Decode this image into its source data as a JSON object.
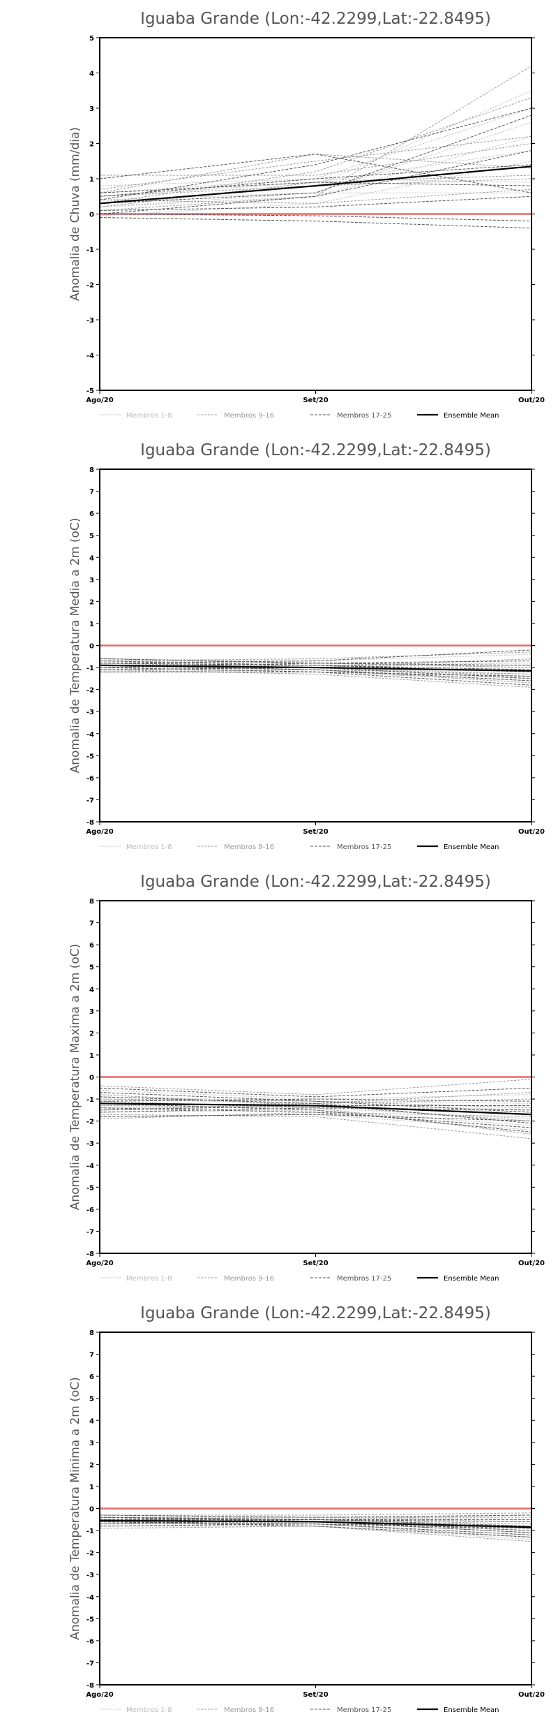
{
  "colors": {
    "members_1_8": "#bbbbbb",
    "members_9_16": "#999999",
    "members_17_25": "#555555",
    "ensemble": "#000000",
    "zero_line": "#e36a6a"
  },
  "x_labels": [
    "Ago/20",
    "Set/20",
    "Out/20"
  ],
  "legend": {
    "members_1_8": "Membros 1-8",
    "members_9_16": "Membros 9-16",
    "members_17_25": "Membros 17-25",
    "ensemble": "Ensemble Mean"
  },
  "chart_data": [
    {
      "type": "line",
      "title": "Iguaba Grande (Lon:-42.2299,Lat:-22.8495)",
      "ylabel": "Anomalia de Chuva (mm/dia)",
      "categories": [
        "Ago/20",
        "Set/20",
        "Out/20"
      ],
      "ylim": [
        -5,
        5
      ],
      "yticks": [
        -5,
        -4,
        -3,
        -2,
        -1,
        0,
        1,
        2,
        3,
        4,
        5
      ],
      "grid": false,
      "legend_position": "bottom",
      "series": [
        {
          "values": [
            0.5,
            0.9,
            1.8
          ],
          "group": "members_1_8"
        },
        {
          "values": [
            0.3,
            0.8,
            3.5
          ],
          "group": "members_1_8"
        },
        {
          "values": [
            0.2,
            0.5,
            2.2
          ],
          "group": "members_1_8"
        },
        {
          "values": [
            0.6,
            1.0,
            3.0
          ],
          "group": "members_1_8"
        },
        {
          "values": [
            0.4,
            0.6,
            0.6
          ],
          "group": "members_1_8"
        },
        {
          "values": [
            -0.05,
            0.3,
            1.5
          ],
          "group": "members_1_8"
        },
        {
          "values": [
            0.8,
            1.0,
            0.9
          ],
          "group": "members_1_8"
        },
        {
          "values": [
            0.2,
            0.6,
            2.6
          ],
          "group": "members_1_8"
        },
        {
          "values": [
            0.6,
            1.7,
            1.3
          ],
          "group": "members_9_16"
        },
        {
          "values": [
            1.1,
            1.1,
            2.0
          ],
          "group": "members_9_16"
        },
        {
          "values": [
            0.3,
            1.2,
            3.3
          ],
          "group": "members_9_16"
        },
        {
          "values": [
            0.5,
            0.8,
            1.0
          ],
          "group": "members_9_16"
        },
        {
          "values": [
            0.1,
            0.5,
            4.2
          ],
          "group": "members_9_16"
        },
        {
          "values": [
            0.7,
            1.5,
            2.2
          ],
          "group": "members_9_16"
        },
        {
          "values": [
            0.4,
            0.3,
            0.7
          ],
          "group": "members_9_16"
        },
        {
          "values": [
            0.2,
            0.9,
            1.1
          ],
          "group": "members_9_16"
        },
        {
          "values": [
            1.0,
            1.7,
            0.6
          ],
          "group": "members_17_25"
        },
        {
          "values": [
            -0.1,
            -0.2,
            -0.4
          ],
          "group": "members_17_25"
        },
        {
          "values": [
            0.3,
            0.6,
            2.8
          ],
          "group": "members_17_25"
        },
        {
          "values": [
            0.0,
            -0.05,
            -0.2
          ],
          "group": "members_17_25"
        },
        {
          "values": [
            0.5,
            1.0,
            1.4
          ],
          "group": "members_17_25"
        },
        {
          "values": [
            0.1,
            0.2,
            0.5
          ],
          "group": "members_17_25"
        },
        {
          "values": [
            0.4,
            1.4,
            3.0
          ],
          "group": "members_17_25"
        },
        {
          "values": [
            0.0,
            0.5,
            1.8
          ],
          "group": "members_17_25"
        },
        {
          "values": [
            0.6,
            0.9,
            0.8
          ],
          "group": "members_17_25"
        },
        {
          "values": [
            0.3,
            0.8,
            1.35
          ],
          "group": "ensemble"
        }
      ]
    },
    {
      "type": "line",
      "title": "Iguaba Grande (Lon:-42.2299,Lat:-22.8495)",
      "ylabel": "Anomalia de Temperatura Media a 2m (oC)",
      "categories": [
        "Ago/20",
        "Set/20",
        "Out/20"
      ],
      "ylim": [
        -8,
        8
      ],
      "yticks": [
        -8,
        -7,
        -6,
        -5,
        -4,
        -3,
        -2,
        -1,
        0,
        1,
        2,
        3,
        4,
        5,
        6,
        7,
        8
      ],
      "grid": false,
      "legend_position": "bottom",
      "series": [
        {
          "values": [
            -0.9,
            -1.0,
            -1.3
          ],
          "group": "members_1_8"
        },
        {
          "values": [
            -0.7,
            -0.8,
            -1.0
          ],
          "group": "members_1_8"
        },
        {
          "values": [
            -1.0,
            -1.1,
            -1.5
          ],
          "group": "members_1_8"
        },
        {
          "values": [
            -0.6,
            -0.7,
            -0.4
          ],
          "group": "members_1_8"
        },
        {
          "values": [
            -0.9,
            -0.9,
            -1.1
          ],
          "group": "members_1_8"
        },
        {
          "values": [
            -1.2,
            -1.2,
            -1.6
          ],
          "group": "members_1_8"
        },
        {
          "values": [
            -0.8,
            -0.9,
            -0.8
          ],
          "group": "members_1_8"
        },
        {
          "values": [
            -1.1,
            -1.0,
            -1.2
          ],
          "group": "members_1_8"
        },
        {
          "values": [
            -0.7,
            -0.6,
            -0.3
          ],
          "group": "members_9_16"
        },
        {
          "values": [
            -0.9,
            -1.1,
            -1.7
          ],
          "group": "members_9_16"
        },
        {
          "values": [
            -1.0,
            -0.9,
            -0.9
          ],
          "group": "members_9_16"
        },
        {
          "values": [
            -0.8,
            -1.0,
            -1.4
          ],
          "group": "members_9_16"
        },
        {
          "values": [
            -1.1,
            -1.3,
            -1.9
          ],
          "group": "members_9_16"
        },
        {
          "values": [
            -0.6,
            -0.8,
            -1.0
          ],
          "group": "members_9_16"
        },
        {
          "values": [
            -0.9,
            -1.0,
            -0.6
          ],
          "group": "members_9_16"
        },
        {
          "values": [
            -1.2,
            -1.1,
            -1.3
          ],
          "group": "members_9_16"
        },
        {
          "values": [
            -0.8,
            -0.7,
            -0.2
          ],
          "group": "members_17_25"
        },
        {
          "values": [
            -1.0,
            -1.2,
            -1.8
          ],
          "group": "members_17_25"
        },
        {
          "values": [
            -0.7,
            -0.9,
            -1.2
          ],
          "group": "members_17_25"
        },
        {
          "values": [
            -1.1,
            -1.0,
            -1.5
          ],
          "group": "members_17_25"
        },
        {
          "values": [
            -0.9,
            -1.1,
            -1.6
          ],
          "group": "members_17_25"
        },
        {
          "values": [
            -0.6,
            -0.8,
            -0.7
          ],
          "group": "members_17_25"
        },
        {
          "values": [
            -1.2,
            -1.2,
            -1.4
          ],
          "group": "members_17_25"
        },
        {
          "values": [
            -0.8,
            -0.9,
            -1.1
          ],
          "group": "members_17_25"
        },
        {
          "values": [
            -1.0,
            -0.8,
            -0.9
          ],
          "group": "members_17_25"
        },
        {
          "values": [
            -0.9,
            -1.0,
            -1.15
          ],
          "group": "ensemble"
        }
      ]
    },
    {
      "type": "line",
      "title": "Iguaba Grande (Lon:-42.2299,Lat:-22.8495)",
      "ylabel": "Anomalia de Temperatura Maxima a 2m (oC)",
      "categories": [
        "Ago/20",
        "Set/20",
        "Out/20"
      ],
      "ylim": [
        -8,
        8
      ],
      "yticks": [
        -8,
        -7,
        -6,
        -5,
        -4,
        -3,
        -2,
        -1,
        0,
        1,
        2,
        3,
        4,
        5,
        6,
        7,
        8
      ],
      "grid": false,
      "legend_position": "bottom",
      "series": [
        {
          "values": [
            -1.3,
            -1.4,
            -1.9
          ],
          "group": "members_1_8"
        },
        {
          "values": [
            -1.0,
            -1.2,
            -1.5
          ],
          "group": "members_1_8"
        },
        {
          "values": [
            -1.6,
            -1.5,
            -2.2
          ],
          "group": "members_1_8"
        },
        {
          "values": [
            -0.6,
            -1.0,
            -0.8
          ],
          "group": "members_1_8"
        },
        {
          "values": [
            -1.2,
            -1.3,
            -1.6
          ],
          "group": "members_1_8"
        },
        {
          "values": [
            -1.8,
            -1.7,
            -2.4
          ],
          "group": "members_1_8"
        },
        {
          "values": [
            -0.9,
            -1.1,
            -1.2
          ],
          "group": "members_1_8"
        },
        {
          "values": [
            -1.4,
            -1.3,
            -1.7
          ],
          "group": "members_1_8"
        },
        {
          "values": [
            -0.4,
            -0.8,
            -0.1
          ],
          "group": "members_9_16"
        },
        {
          "values": [
            -1.1,
            -1.4,
            -2.6
          ],
          "group": "members_9_16"
        },
        {
          "values": [
            -1.5,
            -1.2,
            -1.0
          ],
          "group": "members_9_16"
        },
        {
          "values": [
            -0.8,
            -1.3,
            -2.0
          ],
          "group": "members_9_16"
        },
        {
          "values": [
            -1.7,
            -1.8,
            -2.8
          ],
          "group": "members_9_16"
        },
        {
          "values": [
            -1.0,
            -1.1,
            -1.4
          ],
          "group": "members_9_16"
        },
        {
          "values": [
            -1.3,
            -1.2,
            -0.7
          ],
          "group": "members_9_16"
        },
        {
          "values": [
            -1.9,
            -1.6,
            -1.8
          ],
          "group": "members_9_16"
        },
        {
          "values": [
            -0.5,
            -0.9,
            -0.5
          ],
          "group": "members_17_25"
        },
        {
          "values": [
            -1.2,
            -1.5,
            -2.5
          ],
          "group": "members_17_25"
        },
        {
          "values": [
            -1.6,
            -1.4,
            -1.5
          ],
          "group": "members_17_25"
        },
        {
          "values": [
            -0.9,
            -1.2,
            -2.1
          ],
          "group": "members_17_25"
        },
        {
          "values": [
            -1.4,
            -1.6,
            -2.3
          ],
          "group": "members_17_25"
        },
        {
          "values": [
            -1.1,
            -1.0,
            -1.1
          ],
          "group": "members_17_25"
        },
        {
          "values": [
            -1.8,
            -1.7,
            -2.0
          ],
          "group": "members_17_25"
        },
        {
          "values": [
            -0.7,
            -1.1,
            -1.6
          ],
          "group": "members_17_25"
        },
        {
          "values": [
            -1.5,
            -1.3,
            -1.3
          ],
          "group": "members_17_25"
        },
        {
          "values": [
            -1.2,
            -1.3,
            -1.7
          ],
          "group": "ensemble"
        }
      ]
    },
    {
      "type": "line",
      "title": "Iguaba Grande (Lon:-42.2299,Lat:-22.8495)",
      "ylabel": "Anomalia de Temperatura Minima a 2m (oC)",
      "categories": [
        "Ago/20",
        "Set/20",
        "Out/20"
      ],
      "ylim": [
        -8,
        8
      ],
      "yticks": [
        -8,
        -7,
        -6,
        -5,
        -4,
        -3,
        -2,
        -1,
        0,
        1,
        2,
        3,
        4,
        5,
        6,
        7,
        8
      ],
      "grid": false,
      "legend_position": "bottom",
      "series": [
        {
          "values": [
            -0.5,
            -0.6,
            -0.9
          ],
          "group": "members_1_8"
        },
        {
          "values": [
            -0.3,
            -0.4,
            -0.5
          ],
          "group": "members_1_8"
        },
        {
          "values": [
            -0.7,
            -0.7,
            -1.2
          ],
          "group": "members_1_8"
        },
        {
          "values": [
            -0.4,
            -0.5,
            -0.3
          ],
          "group": "members_1_8"
        },
        {
          "values": [
            -0.6,
            -0.5,
            -0.8
          ],
          "group": "members_1_8"
        },
        {
          "values": [
            -0.8,
            -0.8,
            -1.4
          ],
          "group": "members_1_8"
        },
        {
          "values": [
            -0.5,
            -0.4,
            -0.6
          ],
          "group": "members_1_8"
        },
        {
          "values": [
            -0.6,
            -0.6,
            -1.0
          ],
          "group": "members_1_8"
        },
        {
          "values": [
            -0.3,
            -0.3,
            -0.2
          ],
          "group": "members_9_16"
        },
        {
          "values": [
            -0.7,
            -0.6,
            -1.1
          ],
          "group": "members_9_16"
        },
        {
          "values": [
            -0.4,
            -0.5,
            -0.7
          ],
          "group": "members_9_16"
        },
        {
          "values": [
            -0.6,
            -0.7,
            -1.3
          ],
          "group": "members_9_16"
        },
        {
          "values": [
            -0.9,
            -0.8,
            -1.5
          ],
          "group": "members_9_16"
        },
        {
          "values": [
            -0.5,
            -0.5,
            -0.9
          ],
          "group": "members_9_16"
        },
        {
          "values": [
            -0.4,
            -0.4,
            -0.4
          ],
          "group": "members_9_16"
        },
        {
          "values": [
            -0.7,
            -0.6,
            -0.8
          ],
          "group": "members_9_16"
        },
        {
          "values": [
            -0.3,
            -0.4,
            -0.3
          ],
          "group": "members_17_25"
        },
        {
          "values": [
            -0.6,
            -0.7,
            -1.2
          ],
          "group": "members_17_25"
        },
        {
          "values": [
            -0.5,
            -0.6,
            -1.0
          ],
          "group": "members_17_25"
        },
        {
          "values": [
            -0.7,
            -0.5,
            -0.6
          ],
          "group": "members_17_25"
        },
        {
          "values": [
            -0.4,
            -0.6,
            -1.1
          ],
          "group": "members_17_25"
        },
        {
          "values": [
            -0.8,
            -0.7,
            -0.9
          ],
          "group": "members_17_25"
        },
        {
          "values": [
            -0.5,
            -0.5,
            -0.5
          ],
          "group": "members_17_25"
        },
        {
          "values": [
            -0.6,
            -0.8,
            -1.3
          ],
          "group": "members_17_25"
        },
        {
          "values": [
            -0.4,
            -0.5,
            -0.8
          ],
          "group": "members_17_25"
        },
        {
          "values": [
            -0.55,
            -0.6,
            -0.85
          ],
          "group": "ensemble"
        }
      ]
    }
  ]
}
